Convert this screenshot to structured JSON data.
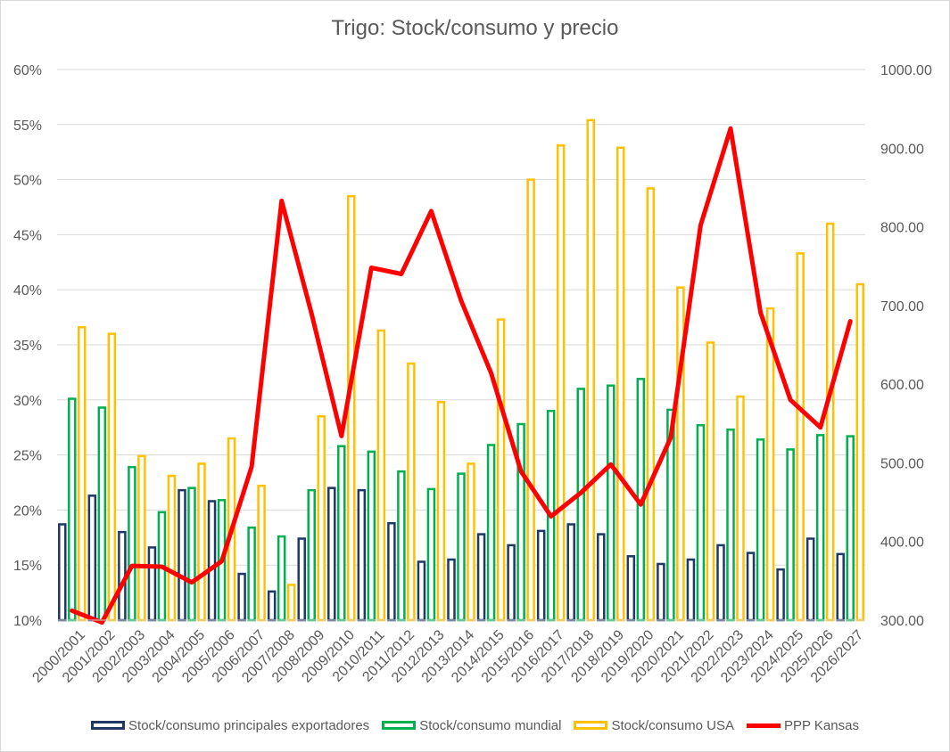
{
  "chart_data": {
    "type": "bar",
    "title": "Trigo: Stock/consumo y precio",
    "categories": [
      "2000/2001",
      "2001/2002",
      "2002/2003",
      "2003/2004",
      "2004/2005",
      "2005/2006",
      "2006/2007",
      "2007/2008",
      "2008/2009",
      "2009/2010",
      "2010/2011",
      "2011/2012",
      "2012/2013",
      "2013/2014",
      "2014/2015",
      "2015/2016",
      "2016/2017",
      "2017/2018",
      "2018/2019",
      "2019/2020",
      "2020/2021",
      "2021/2022",
      "2022/2023",
      "2023/2024",
      "2024/2025",
      "2025/2026",
      "2026/2027"
    ],
    "y_left": {
      "min": 0.1,
      "max": 0.6,
      "step": 0.05,
      "tick_labels": [
        "10%",
        "15%",
        "20%",
        "25%",
        "30%",
        "35%",
        "40%",
        "45%",
        "50%",
        "55%",
        "60%"
      ]
    },
    "y_right": {
      "min": 300,
      "max": 1000,
      "step": 100,
      "tick_labels": [
        "300.00",
        "400.00",
        "500.00",
        "600.00",
        "700.00",
        "800.00",
        "900.00",
        "1000.00"
      ]
    },
    "grid": true,
    "legend_position": "bottom",
    "series": [
      {
        "name": "Stock/consumo principales exportadores",
        "type": "bar",
        "axis": "left",
        "color": "#1f3864",
        "values": [
          0.187,
          0.213,
          0.18,
          0.166,
          0.218,
          0.208,
          0.142,
          0.126,
          0.174,
          0.22,
          0.218,
          0.188,
          0.153,
          0.155,
          0.178,
          0.168,
          0.181,
          0.187,
          0.178,
          0.158,
          0.151,
          0.155,
          0.168,
          0.161,
          0.146,
          0.174,
          0.16
        ]
      },
      {
        "name": "Stock/consumo mundial",
        "type": "bar",
        "axis": "left",
        "color": "#00b050",
        "values": [
          0.301,
          0.293,
          0.239,
          0.198,
          0.22,
          0.209,
          0.184,
          0.176,
          0.218,
          0.258,
          0.253,
          0.235,
          0.219,
          0.233,
          0.259,
          0.278,
          0.29,
          0.31,
          0.313,
          0.319,
          0.291,
          0.277,
          0.273,
          0.264,
          0.255,
          0.268,
          0.267
        ]
      },
      {
        "name": "Stock/consumo USA",
        "type": "bar",
        "axis": "left",
        "color": "#ffc000",
        "values": [
          0.366,
          0.36,
          0.249,
          0.231,
          0.242,
          0.265,
          0.222,
          0.132,
          0.285,
          0.485,
          0.363,
          0.333,
          0.298,
          0.242,
          0.373,
          0.5,
          0.531,
          0.554,
          0.529,
          0.492,
          0.402,
          0.352,
          0.303,
          0.383,
          0.433,
          0.46,
          0.405
        ]
      },
      {
        "name": "PPP Kansas",
        "type": "line",
        "axis": "right",
        "color": "#ff0000",
        "values": [
          312,
          297,
          369,
          368,
          348,
          375,
          495,
          833,
          690,
          534,
          748,
          740,
          820,
          706,
          614,
          489,
          432,
          462,
          498,
          447,
          532,
          802,
          925,
          691,
          580,
          545,
          680
        ]
      }
    ]
  }
}
